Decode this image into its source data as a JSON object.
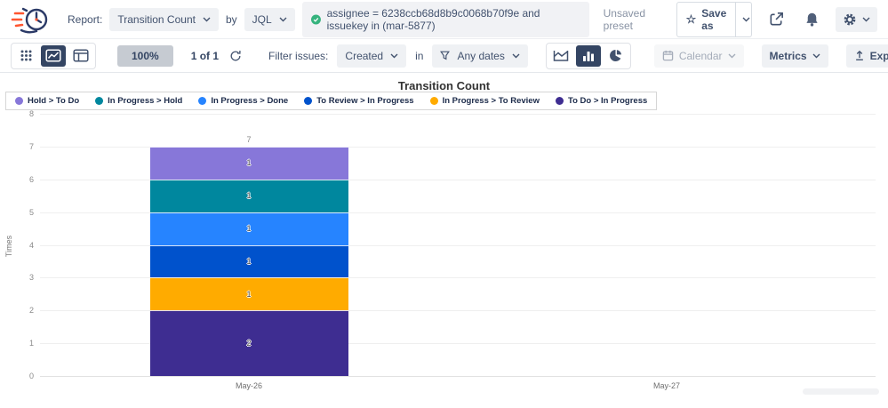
{
  "header": {
    "report_label": "Report:",
    "report_value": "Transition Count",
    "by_label": "by",
    "by_mode": "JQL",
    "query": "assignee = 6238ccb68d8b9c0068b70f9e and issuekey in (mar-5877)",
    "preset_status": "Unsaved preset",
    "save_as": "Save as"
  },
  "toolbar": {
    "zoom": "100%",
    "page": "1 of 1",
    "filter_label": "Filter issues:",
    "filter_value": "Created",
    "in_label": "in",
    "dates_value": "Any dates",
    "calendar": "Calendar",
    "metrics": "Metrics",
    "export": "Export"
  },
  "colors": {
    "accent_navy": "#344563",
    "check_green": "#36B37E"
  },
  "chart_data": {
    "type": "bar",
    "stacked": true,
    "title": "Transition Count",
    "ylabel": "Times",
    "ylim": [
      0,
      8
    ],
    "yticks": [
      0,
      1,
      2,
      3,
      4,
      5,
      6,
      7,
      8
    ],
    "categories": [
      "May-26",
      "May-27"
    ],
    "series": [
      {
        "name": "Hold > To Do",
        "color": "#8777D9",
        "values": [
          1,
          0
        ]
      },
      {
        "name": "In Progress > Hold",
        "color": "#00879E",
        "values": [
          1,
          0
        ]
      },
      {
        "name": "In Progress > Done",
        "color": "#2684FF",
        "values": [
          1,
          0
        ]
      },
      {
        "name": "To Review > In Progress",
        "color": "#0052CC",
        "values": [
          1,
          0
        ]
      },
      {
        "name": "In Progress > To Review",
        "color": "#FFAB00",
        "values": [
          1,
          0
        ]
      },
      {
        "name": "To Do > In Progress",
        "color": "#3E2D91",
        "values": [
          2,
          0
        ]
      }
    ],
    "totals": [
      7,
      0
    ],
    "legend_position": "top-left",
    "grid": true
  }
}
